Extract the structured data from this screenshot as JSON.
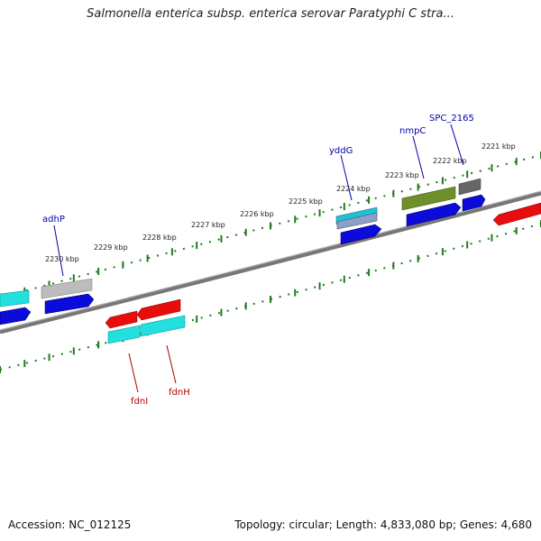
{
  "title": "Salmonella enterica subsp. enterica serovar Paratyphi C stra...",
  "footer": {
    "accession": "Accession: NC_012125",
    "summary": "Topology: circular; Length: 4,833,080 bp; Genes: 4,680"
  },
  "colors": {
    "backbone": "#777777",
    "ticks": "#1f7a1f",
    "label_blue": "#0000aa",
    "label_red": "#aa0000"
  },
  "scale_labels": [
    "2230 kbp",
    "2229 kbp",
    "2228 kbp",
    "2227 kbp",
    "2226 kbp",
    "2225 kbp",
    "2224 kbp",
    "2223 kbp",
    "2222 kbp",
    "2221 kbp"
  ],
  "gene_labels": [
    {
      "name": "adhP",
      "strand": "forward"
    },
    {
      "name": "yddG",
      "strand": "forward"
    },
    {
      "name": "nmpC",
      "strand": "forward"
    },
    {
      "name": "SPC_2165",
      "strand": "forward"
    },
    {
      "name": "fdnI",
      "strand": "reverse"
    },
    {
      "name": "fdnH",
      "strand": "reverse"
    }
  ]
}
